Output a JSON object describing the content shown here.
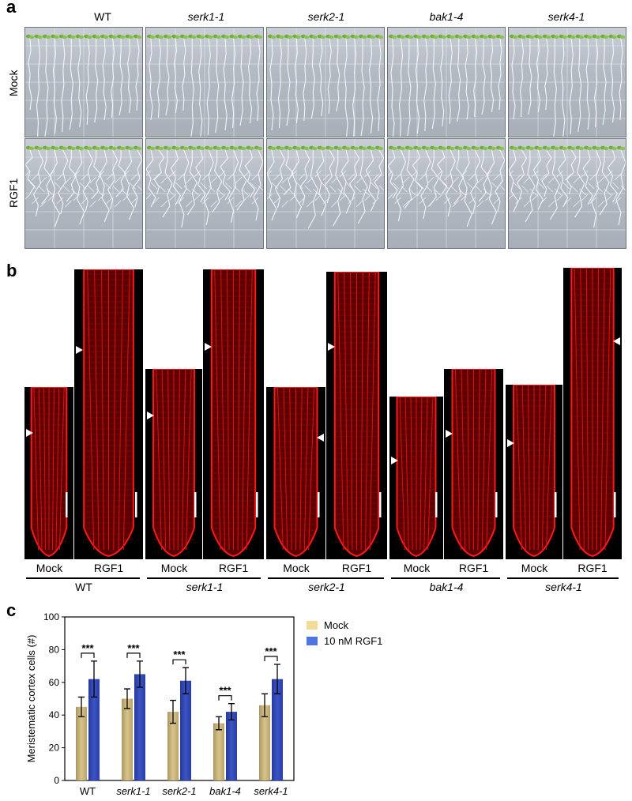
{
  "panel_a": {
    "letter": "a",
    "columns": [
      "WT",
      "serk1-1",
      "serk2-1",
      "bak1-4",
      "serk4-1"
    ],
    "rows": [
      "Mock",
      "RGF1"
    ]
  },
  "panel_b": {
    "letter": "b",
    "treatments": [
      "Mock",
      "RGF1"
    ],
    "genotypes": [
      "WT",
      "serk1-1",
      "serk2-1",
      "bak1-4",
      "serk4-1"
    ]
  },
  "panel_c": {
    "letter": "c",
    "significance": "***"
  },
  "chart_data": {
    "type": "bar",
    "title": "",
    "xlabel": "",
    "ylabel": "Meristematic cortex cells (#)",
    "categories": [
      "WT",
      "serk1-1",
      "serk2-1",
      "bak1-4",
      "serk4-1"
    ],
    "ylim": [
      0,
      100
    ],
    "yticks": [
      0,
      20,
      40,
      60,
      80,
      100
    ],
    "legend_position": "top-right",
    "series": [
      {
        "name": "Mock",
        "color": "#d9c48a",
        "values": [
          45,
          50,
          42,
          35,
          46
        ],
        "errors": [
          6,
          6,
          7,
          4,
          7
        ]
      },
      {
        "name": "10 nM RGF1",
        "color": "#3b54c4",
        "values": [
          62,
          65,
          61,
          42,
          62
        ],
        "errors": [
          11,
          8,
          8,
          5,
          9
        ]
      }
    ],
    "significance": [
      "***",
      "***",
      "***",
      "***",
      "***"
    ]
  }
}
